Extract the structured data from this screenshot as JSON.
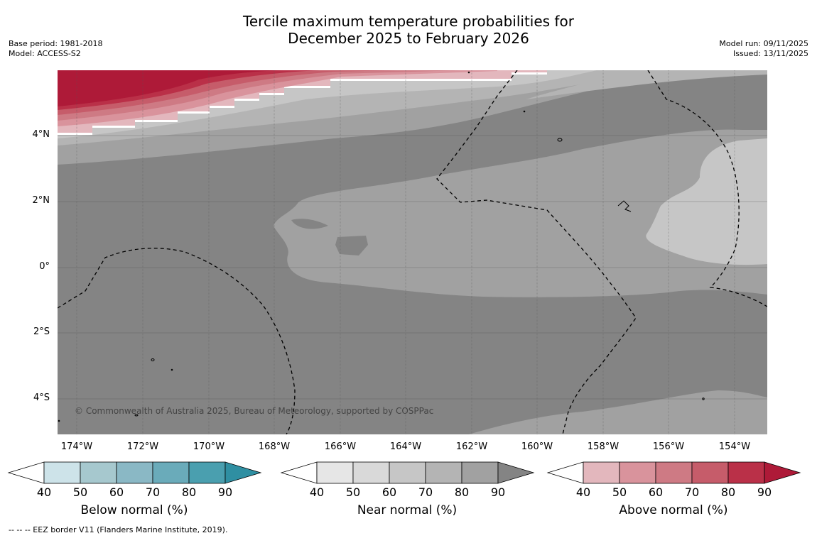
{
  "title_line1": "Tercile maximum temperature probabilities for",
  "title_line2": "December 2025 to February 2026",
  "meta_left": {
    "base_period": "Base period: 1981-2018",
    "model": "Model: ACCESS-S2"
  },
  "meta_right": {
    "model_run": "Model run: 09/11/2025",
    "issued": "Issued: 13/11/2025"
  },
  "map": {
    "lat_labels": [
      "4°N",
      "2°N",
      "0°",
      "2°S",
      "4°S"
    ],
    "lon_labels": [
      "174°W",
      "172°W",
      "170°W",
      "168°W",
      "166°W",
      "164°W",
      "162°W",
      "160°W",
      "158°W",
      "156°W",
      "154°W"
    ],
    "copyright": "© Commonwealth of Australia 2025, Bureau of Meteorology, supported by COSPPac"
  },
  "legend": {
    "ticks": [
      "40",
      "50",
      "60",
      "70",
      "80",
      "90"
    ],
    "below": {
      "title": "Below normal (%)",
      "colors": [
        "#cde3e9",
        "#a6c8ce",
        "#8ab8c5",
        "#6aabba",
        "#4a9faf",
        "#2f8fa2"
      ]
    },
    "near": {
      "title": "Near normal (%)",
      "colors": [
        "#e6e6e6",
        "#d9d9d9",
        "#c6c6c6",
        "#b4b4b4",
        "#a1a1a1",
        "#848484"
      ]
    },
    "above": {
      "title": "Above normal (%)",
      "colors": [
        "#e3b7bd",
        "#d9939c",
        "#ce7a84",
        "#c65c6a",
        "#ba3048",
        "#ae1a38"
      ]
    }
  },
  "footnote": "--  --  -- EEZ border V11 (Flanders Marine Institute, 2019).",
  "colors": {
    "gray80": "#a1a1a1",
    "gray90": "#848484",
    "gray70": "#b4b4b4",
    "gray60": "#c6c6c6",
    "red": "#ae1a38"
  }
}
